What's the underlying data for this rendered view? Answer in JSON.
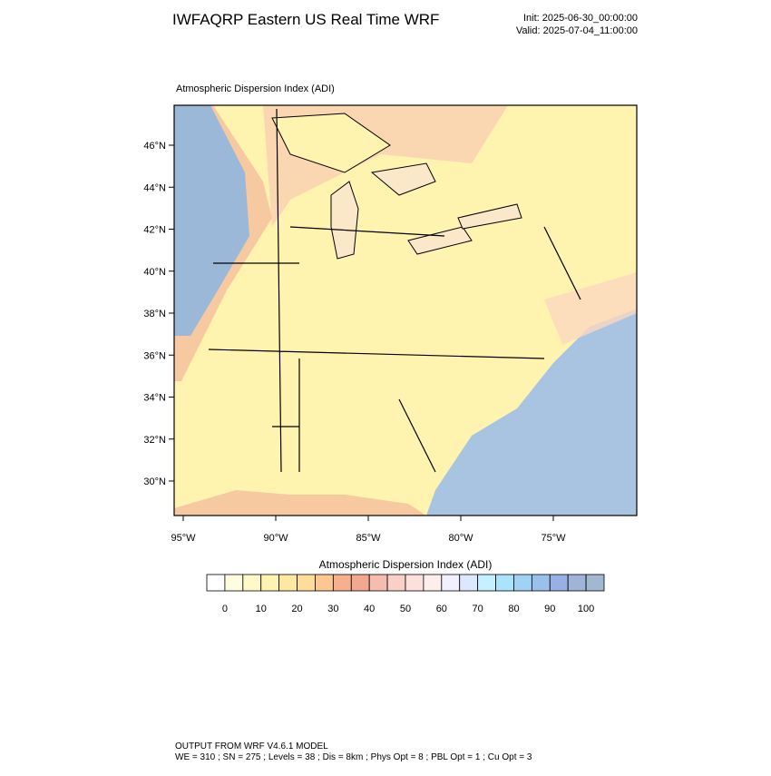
{
  "header": {
    "title": "IWFAQRP Eastern US Real Time WRF",
    "init": "Init: 2025-06-30_00:00:00",
    "valid": "Valid: 2025-07-04_11:00:00"
  },
  "map": {
    "subtitle": "Atmospheric Dispersion Index   (ADI)",
    "lat_labels": [
      "46°N",
      "44°N",
      "42°N",
      "40°N",
      "38°N",
      "36°N",
      "34°N",
      "32°N",
      "30°N"
    ],
    "lon_labels": [
      "95°W",
      "90°W",
      "85°W",
      "80°W",
      "75°W"
    ]
  },
  "colorbar": {
    "title": "Atmospheric Dispersion Index  (ADI)",
    "colors": [
      "#ffffff",
      "#fffde0",
      "#fff8c8",
      "#fff3b0",
      "#ffe9a0",
      "#ffdd99",
      "#fdc890",
      "#f7b08c",
      "#f2a890",
      "#f5bcb0",
      "#f9d0c8",
      "#fbe0dc",
      "#fdeeee",
      "#f0f0ff",
      "#dde8ff",
      "#c4f0ff",
      "#a8e4fa",
      "#a0d2f4",
      "#9cc0ec",
      "#98b0e4",
      "#9fb4d8",
      "#a2b8d0"
    ],
    "ticks": [
      0,
      10,
      20,
      30,
      40,
      50,
      60,
      70,
      80,
      90,
      100
    ]
  },
  "footer": {
    "line1": "OUTPUT FROM WRF V4.6.1 MODEL",
    "line2": "WE = 310 ; SN = 275 ; Levels = 38 ; Dis = 8km ; Phys Opt = 8 ; PBL Opt = 1 ; Cu Opt = 3"
  }
}
